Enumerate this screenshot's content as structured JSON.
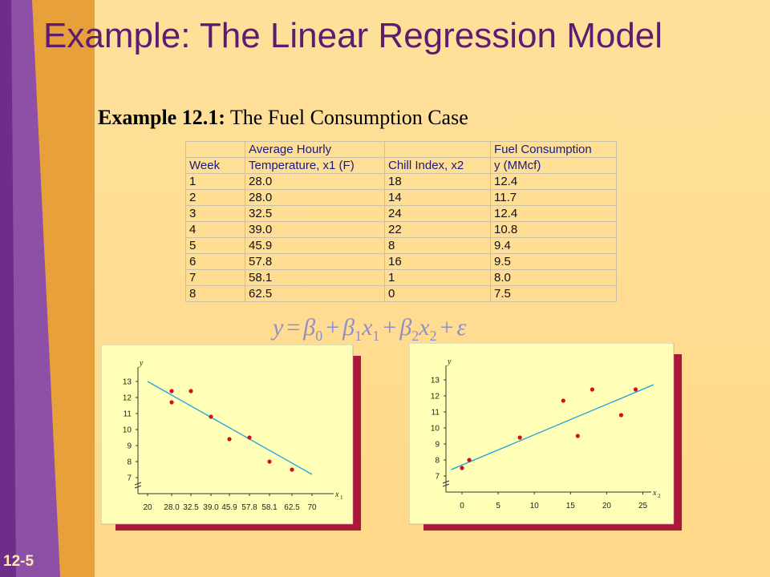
{
  "slide": {
    "title": "Example:  The Linear Regression Model",
    "subtitle_bold": "Example 12.1:",
    "subtitle_rest": " The Fuel Consumption Case",
    "page_number": "12-5"
  },
  "table": {
    "header_row1": [
      "",
      "Average Hourly",
      "",
      "Fuel Consumption"
    ],
    "header_row2": [
      "Week",
      "Temperature, x1 (F)",
      "Chill Index, x2",
      "y (MMcf)"
    ],
    "rows": [
      [
        "1",
        "28.0",
        "18",
        "12.4"
      ],
      [
        "2",
        "28.0",
        "14",
        "11.7"
      ],
      [
        "3",
        "32.5",
        "24",
        "12.4"
      ],
      [
        "4",
        "39.0",
        "22",
        "10.8"
      ],
      [
        "5",
        "45.9",
        "8",
        "9.4"
      ],
      [
        "6",
        "57.8",
        "16",
        "9.5"
      ],
      [
        "7",
        "58.1",
        "1",
        "8.0"
      ],
      [
        "8",
        "62.5",
        "0",
        "7.5"
      ]
    ]
  },
  "equation": {
    "lhs": "y",
    "eq": "=",
    "beta": "β",
    "x": "x",
    "plus": "+",
    "eps": "ε",
    "s0": "0",
    "s1": "1",
    "s2": "2"
  },
  "colors": {
    "title": "#5E1C70",
    "band_purple": "#8E4FA6",
    "band_orange": "#E8A03A",
    "chart_bg": "#FFFFB8",
    "chart_shadow": "#B0163A",
    "point": "#D01020",
    "line": "#1FA3E0"
  },
  "chart_data": [
    {
      "type": "scatter",
      "xlabel": "x1",
      "ylabel": "y",
      "x_ticks": [
        "20",
        "28.0",
        "32.5",
        "39.0",
        "45.9",
        "57.8",
        "58.1",
        "62.5",
        "70"
      ],
      "y_ticks": [
        7,
        8,
        9,
        10,
        11,
        12,
        13
      ],
      "ylim": [
        6,
        13.5
      ],
      "points": [
        [
          28.0,
          12.4
        ],
        [
          28.0,
          11.7
        ],
        [
          32.5,
          12.4
        ],
        [
          39.0,
          10.8
        ],
        [
          45.9,
          9.4
        ],
        [
          57.8,
          9.5
        ],
        [
          58.1,
          8.0
        ],
        [
          62.5,
          7.5
        ]
      ],
      "fit_line": [
        [
          20,
          13.0
        ],
        [
          70,
          7.2
        ]
      ]
    },
    {
      "type": "scatter",
      "xlabel": "x2",
      "ylabel": "y",
      "x_ticks": [
        "0",
        "5",
        "10",
        "15",
        "20",
        "25"
      ],
      "y_ticks": [
        7,
        8,
        9,
        10,
        11,
        12,
        13
      ],
      "ylim": [
        6,
        13.5
      ],
      "points": [
        [
          0,
          7.5
        ],
        [
          1,
          8.0
        ],
        [
          8,
          9.4
        ],
        [
          14,
          11.7
        ],
        [
          16,
          9.5
        ],
        [
          18,
          12.4
        ],
        [
          22,
          10.8
        ],
        [
          24,
          12.4
        ]
      ],
      "fit_line": [
        [
          -1.5,
          7.4
        ],
        [
          26.5,
          12.7
        ]
      ]
    }
  ]
}
